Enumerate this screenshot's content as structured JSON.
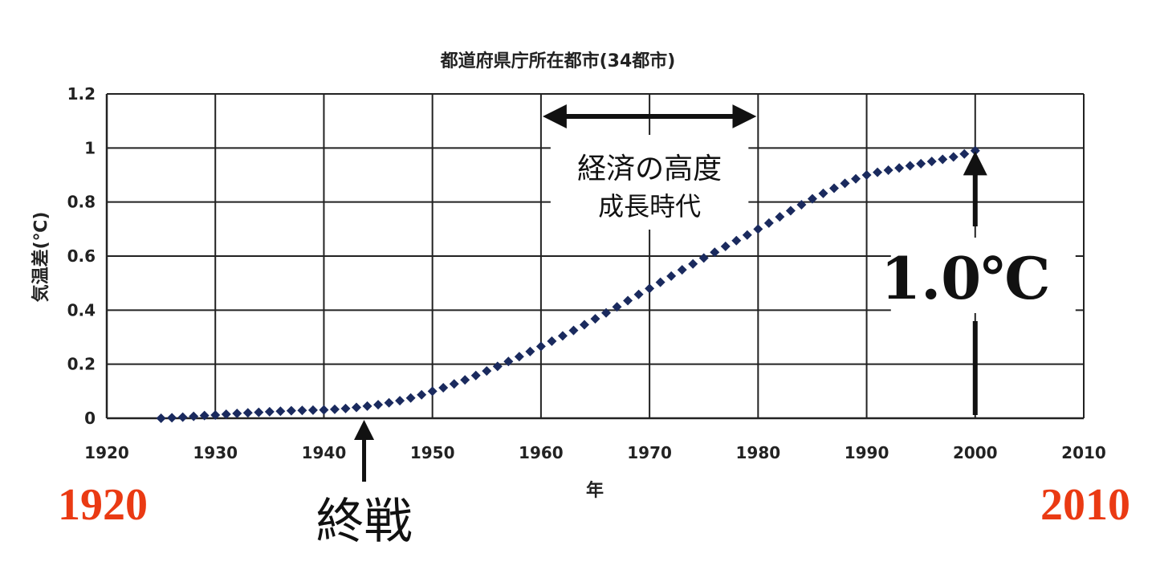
{
  "chart_data": {
    "type": "scatter",
    "title": "都道府県庁所在都市(34都市)",
    "xlabel": "年",
    "ylabel": "気温差(℃)",
    "xlim": [
      1920,
      2010
    ],
    "ylim": [
      0,
      1.2
    ],
    "x_ticks": [
      "1920",
      "1930",
      "1940",
      "1950",
      "1960",
      "1970",
      "1980",
      "1990",
      "2000",
      "2010"
    ],
    "y_ticks": [
      "0",
      "0.2",
      "0.4",
      "0.6",
      "0.8",
      "1",
      "1.2"
    ],
    "grid": true,
    "marker_color": "#1a2a5e",
    "x": [
      1925,
      1926,
      1927,
      1928,
      1929,
      1930,
      1931,
      1932,
      1933,
      1934,
      1935,
      1936,
      1937,
      1938,
      1939,
      1940,
      1941,
      1942,
      1943,
      1944,
      1945,
      1946,
      1947,
      1948,
      1949,
      1950,
      1951,
      1952,
      1953,
      1954,
      1955,
      1956,
      1957,
      1958,
      1959,
      1960,
      1961,
      1962,
      1963,
      1964,
      1965,
      1966,
      1967,
      1968,
      1969,
      1970,
      1971,
      1972,
      1973,
      1974,
      1975,
      1976,
      1977,
      1978,
      1979,
      1980,
      1981,
      1982,
      1983,
      1984,
      1985,
      1986,
      1987,
      1988,
      1989,
      1990,
      1991,
      1992,
      1993,
      1994,
      1995,
      1996,
      1997,
      1998,
      1999,
      2000
    ],
    "y": [
      0.0,
      0.002,
      0.004,
      0.007,
      0.01,
      0.012,
      0.015,
      0.018,
      0.02,
      0.022,
      0.024,
      0.026,
      0.028,
      0.029,
      0.03,
      0.031,
      0.033,
      0.036,
      0.04,
      0.045,
      0.05,
      0.057,
      0.065,
      0.075,
      0.087,
      0.1,
      0.113,
      0.127,
      0.142,
      0.158,
      0.175,
      0.192,
      0.21,
      0.228,
      0.247,
      0.266,
      0.285,
      0.305,
      0.325,
      0.346,
      0.368,
      0.39,
      0.412,
      0.435,
      0.458,
      0.48,
      0.503,
      0.526,
      0.549,
      0.571,
      0.593,
      0.614,
      0.636,
      0.657,
      0.678,
      0.7,
      0.722,
      0.745,
      0.768,
      0.79,
      0.812,
      0.832,
      0.851,
      0.869,
      0.886,
      0.9,
      0.91,
      0.918,
      0.926,
      0.934,
      0.942,
      0.95,
      0.958,
      0.967,
      0.978,
      0.99
    ]
  },
  "annotations": {
    "period_label_line1": "経済の高度",
    "period_label_line2": "成長時代",
    "period_start": 1960,
    "period_end": 1980,
    "war_end_label": "終戦",
    "war_end_year": 1944,
    "rise_label": "1.0℃",
    "rise_year": 2000,
    "rise_value": 1.0,
    "start_year_label": "1920",
    "end_year_label": "2010",
    "arrow_color": "#111111"
  }
}
